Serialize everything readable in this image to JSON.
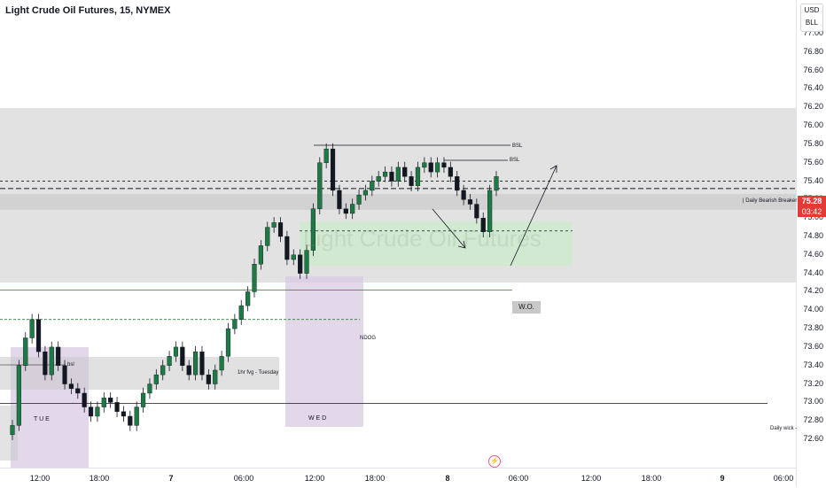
{
  "header": {
    "title": "Light Crude Oil Futures, 15, NYMEX"
  },
  "currency": {
    "line1": "USD",
    "line2": "BLL"
  },
  "watermark": "Light Crude Oil Futures",
  "current_price": {
    "value": "75.28",
    "countdown": "03:42"
  },
  "annotations": {
    "bsl_top": "BSL",
    "bsl_second": "BSL",
    "daily_bearish_breaker": "| Daily Bearish Breaker",
    "wo": "W.O.",
    "ndog": "NDOG",
    "fvg": "1hr fvg - Tuesday",
    "bsl_left": "bsl",
    "tue": "T U E",
    "wed": "W E D",
    "daily_wick": "Daily wick -"
  },
  "colors": {
    "up": "#1e7a44",
    "down": "#131722",
    "zone": "#d6d6d6",
    "green_zone": "#cfe9cf",
    "purple_zone": "#dac9e3",
    "price_tag": "#e53935"
  },
  "chart_data": {
    "type": "candlestick",
    "y_ticks": [
      "77.00",
      "76.80",
      "76.60",
      "76.40",
      "76.20",
      "76.00",
      "75.80",
      "75.60",
      "75.40",
      "75.20",
      "75.00",
      "74.80",
      "74.60",
      "74.40",
      "74.20",
      "74.00",
      "73.80",
      "73.60",
      "73.40",
      "73.20",
      "73.00",
      "72.80",
      "72.60"
    ],
    "x_ticks": [
      {
        "label": "12:00",
        "bold": false
      },
      {
        "label": "18:00",
        "bold": false
      },
      {
        "label": "7",
        "bold": true
      },
      {
        "label": "06:00",
        "bold": false
      },
      {
        "label": "12:00",
        "bold": false
      },
      {
        "label": "18:00",
        "bold": false
      },
      {
        "label": "8",
        "bold": true
      },
      {
        "label": "06:00",
        "bold": false
      },
      {
        "label": "12:00",
        "bold": false
      },
      {
        "label": "18:00",
        "bold": false
      },
      {
        "label": "9",
        "bold": true
      },
      {
        "label": "06:00",
        "bold": false
      }
    ],
    "ylim": [
      72.55,
      77.1
    ],
    "levels": {
      "daily_bearish_breaker": 75.32,
      "dashed_upper": 75.4,
      "ndog": 73.9,
      "wo": 74.22,
      "daily_wick": 72.99,
      "green_mid": 74.86
    },
    "candles_close": [
      72.75,
      73.4,
      73.7,
      73.9,
      73.55,
      73.3,
      73.6,
      73.4,
      73.2,
      73.15,
      73.1,
      72.95,
      72.85,
      72.95,
      73.05,
      73.0,
      72.9,
      72.85,
      72.75,
      72.95,
      73.1,
      73.2,
      73.3,
      73.4,
      73.5,
      73.6,
      73.4,
      73.3,
      73.55,
      73.3,
      73.2,
      73.35,
      73.5,
      73.8,
      73.9,
      74.05,
      74.2,
      74.5,
      74.7,
      74.9,
      74.95,
      74.8,
      74.55,
      74.6,
      74.4,
      74.65,
      75.1,
      75.6,
      75.75,
      75.3,
      75.1,
      75.05,
      75.15,
      75.25,
      75.3,
      75.4,
      75.45,
      75.5,
      75.4,
      75.55,
      75.45,
      75.35,
      75.55,
      75.6,
      75.5,
      75.6,
      75.55,
      75.45,
      75.3,
      75.2,
      75.15,
      75.0,
      74.85,
      75.3,
      75.45
    ]
  }
}
